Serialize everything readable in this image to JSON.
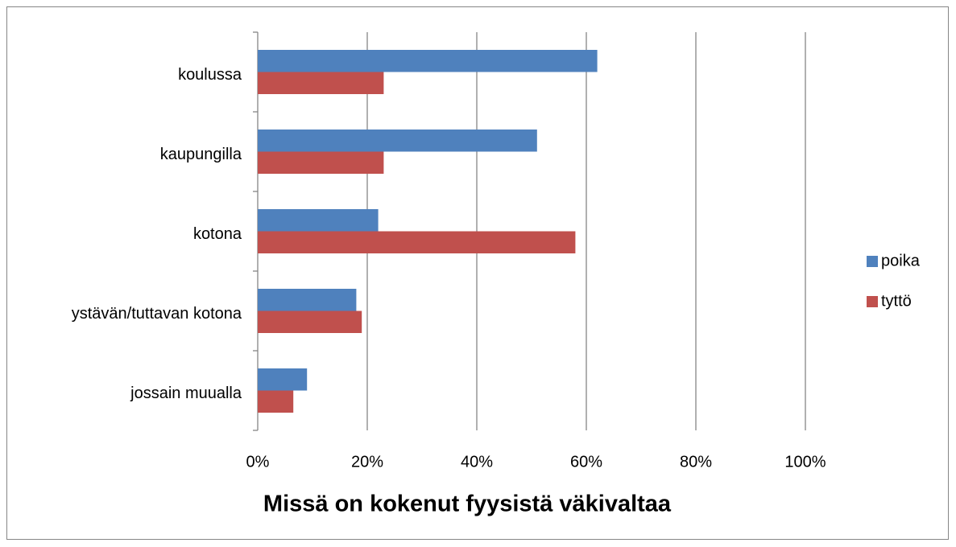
{
  "chart_data": {
    "type": "bar",
    "orientation": "horizontal",
    "title": "Missä on kokenut fyysistä väkivaltaa",
    "categories": [
      "koulussa",
      "kaupungilla",
      "kotona",
      "ystävän/tuttavan kotona",
      "jossain muualla"
    ],
    "series": [
      {
        "name": "poika",
        "color": "#4f81bd",
        "values": [
          62,
          51,
          22,
          18,
          9
        ]
      },
      {
        "name": "tyttö",
        "color": "#c0504d",
        "values": [
          23,
          23,
          58,
          19,
          6.5
        ]
      }
    ],
    "xlim": [
      0,
      100
    ],
    "xticks": [
      {
        "value": 0,
        "label": "0%"
      },
      {
        "value": 20,
        "label": "20%"
      },
      {
        "value": 40,
        "label": "40%"
      },
      {
        "value": 60,
        "label": "60%"
      },
      {
        "value": 80,
        "label": "80%"
      },
      {
        "value": 100,
        "label": "100%"
      }
    ],
    "grid": true,
    "legend": "right"
  }
}
